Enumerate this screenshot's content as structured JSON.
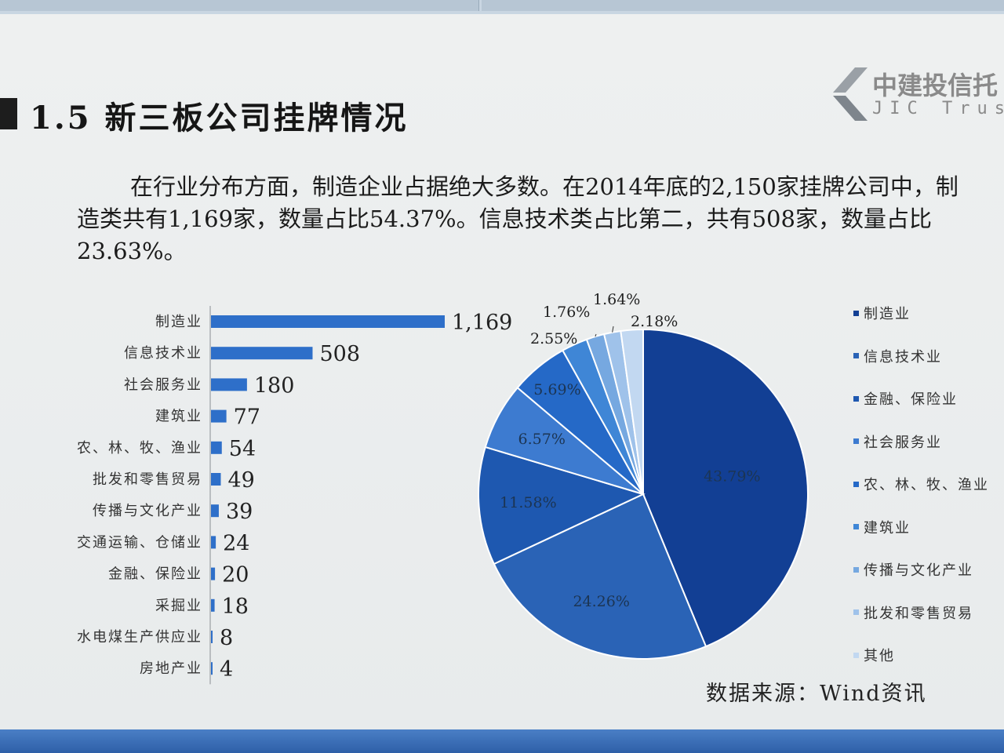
{
  "page": {
    "title": "1.5 新三板公司挂牌情况",
    "paragraph": "在行业分布方面，制造企业占据绝大多数。在2014年底的2,150家挂牌公司中，制造类共有1,169家，数量占比54.37%。信息技术类占比第二，共有508家，数量占比23.63%。",
    "source": "数据来源：Wind资讯",
    "logo": {
      "cn": "中建投信托",
      "en": "JIC Trust"
    }
  },
  "colors": {
    "bar": "#2e6fc9",
    "pie": [
      "#123f94",
      "#2a63b6",
      "#1e58b0",
      "#3d7bd0",
      "#2569c7",
      "#3f86d6",
      "#76a8e0",
      "#9fc2ea",
      "#c2d8f1"
    ],
    "legend_swatch": [
      "#123f94",
      "#2a63b6",
      "#1e58b0",
      "#3d7bd0",
      "#2569c7",
      "#3f86d6",
      "#76a8e0",
      "#9fc2ea",
      "#c2d8f1"
    ]
  },
  "chart_data": [
    {
      "type": "bar",
      "orientation": "horizontal",
      "categories": [
        "制造业",
        "信息技术业",
        "社会服务业",
        "建筑业",
        "农、林、牧、渔业",
        "批发和零售贸易",
        "传播与文化产业",
        "交通运输、仓储业",
        "金融、保险业",
        "采掘业",
        "水电煤生产供应业",
        "房地产业"
      ],
      "values": [
        1169,
        508,
        180,
        77,
        54,
        49,
        39,
        24,
        20,
        18,
        8,
        4
      ],
      "value_labels": [
        "1,169",
        "508",
        "180",
        "77",
        "54",
        "49",
        "39",
        "24",
        "20",
        "18",
        "8",
        "4"
      ],
      "xlim": [
        0,
        1169
      ]
    },
    {
      "type": "pie",
      "legend_position": "right",
      "legend": [
        "制造业",
        "信息技术业",
        "金融、保险业",
        "社会服务业",
        "农、林、牧、渔业",
        "建筑业",
        "传播与文化产业",
        "批发和零售贸易",
        "其他"
      ],
      "slices": [
        43.79,
        24.26,
        11.58,
        6.57,
        5.69,
        2.55,
        1.76,
        1.64,
        2.18
      ],
      "labels": [
        "43.79%",
        "24.26%",
        "11.58%",
        "6.57%",
        "5.69%",
        "2.55%",
        "1.76%",
        "1.64%",
        "2.18%"
      ]
    }
  ]
}
